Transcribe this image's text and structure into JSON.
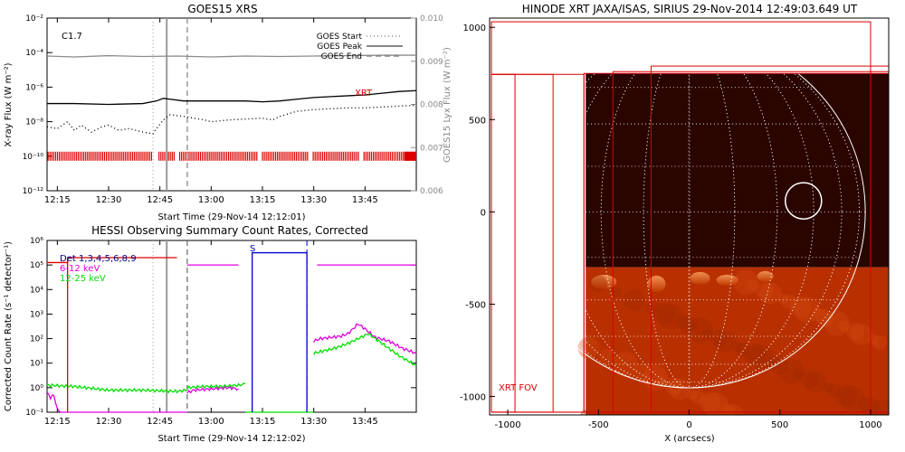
{
  "chart_data": [
    {
      "id": "goes",
      "type": "line",
      "title": "GOES15 XRS",
      "xlabel": "Start Time (29-Nov-14 12:12:01)",
      "ylabel_left": "X-ray Flux (W m⁻²)",
      "ylabel_right": "GOES15 Lyx Flux (W m⁻²)",
      "annotation": "C1.7",
      "x_ticks": [
        "12:15",
        "12:30",
        "12:45",
        "13:00",
        "13:15",
        "13:30",
        "13:45"
      ],
      "x_tick_minutes": [
        15,
        30,
        45,
        60,
        75,
        90,
        105
      ],
      "xlim_minutes": [
        12,
        120
      ],
      "y_scale": "log",
      "ylim_exp": [
        -12,
        -2
      ],
      "y_ticks": [
        "10⁻²",
        "10⁻⁴",
        "10⁻⁶",
        "10⁻⁸",
        "10⁻¹⁰",
        "10⁻¹²"
      ],
      "y_tick_exps": [
        -2,
        -4,
        -6,
        -8,
        -10,
        -12
      ],
      "y2_ticks": [
        "0.010",
        "0.009",
        "0.008",
        "0.007",
        "0.006"
      ],
      "y2_tick_values": [
        0.01,
        0.009,
        0.008,
        0.007,
        0.006
      ],
      "y2lim": [
        0.006,
        0.01
      ],
      "legend": [
        {
          "label": "GOES Start",
          "style": "dotted"
        },
        {
          "label": "GOES Peak",
          "style": "solid"
        },
        {
          "label": "GOES End",
          "style": "dashed"
        }
      ],
      "legend_placement": "top-right",
      "xrt_label": "XRT",
      "event_lines_minutes": {
        "start": 43,
        "peak": 47,
        "end": 53
      },
      "series": [
        {
          "name": "",
          "color": "#000000",
          "style": "solid",
          "axis": "left",
          "x": [
            12,
            20,
            30,
            40,
            44,
            46,
            48,
            52,
            60,
            70,
            75,
            80,
            85,
            90,
            95,
            100,
            105,
            110,
            115,
            120
          ],
          "y_exp": [
            -6.95,
            -6.95,
            -7.0,
            -6.95,
            -6.8,
            -6.65,
            -6.7,
            -6.8,
            -6.8,
            -6.8,
            -6.85,
            -6.8,
            -6.7,
            -6.6,
            -6.55,
            -6.5,
            -6.45,
            -6.35,
            -6.25,
            -6.2
          ]
        },
        {
          "name": "",
          "color": "#000000",
          "style": "dotted",
          "axis": "left",
          "x": [
            12,
            15,
            18,
            20,
            22,
            25,
            28,
            30,
            33,
            36,
            40,
            43,
            44,
            46,
            48,
            50,
            52,
            55,
            58,
            60,
            65,
            70,
            75,
            78,
            80,
            85,
            90,
            95,
            100,
            105,
            110,
            115,
            120
          ],
          "y_exp": [
            -8.3,
            -8.4,
            -8.0,
            -8.5,
            -8.2,
            -8.6,
            -8.3,
            -8.2,
            -8.5,
            -8.4,
            -8.6,
            -8.7,
            -8.4,
            -7.9,
            -7.6,
            -7.65,
            -7.7,
            -7.8,
            -7.9,
            -8.0,
            -7.9,
            -7.85,
            -7.8,
            -7.9,
            -7.7,
            -7.4,
            -7.3,
            -7.25,
            -7.2,
            -7.2,
            -7.15,
            -7.1,
            -7.05
          ]
        },
        {
          "name": "",
          "color": "#8c8c8c",
          "style": "solid",
          "axis": "right",
          "x": [
            12,
            20,
            30,
            40,
            50,
            60,
            70,
            80,
            90,
            100,
            110,
            120
          ],
          "y": [
            0.00912,
            0.0091,
            0.00913,
            0.00911,
            0.00912,
            0.0091,
            0.00912,
            0.00911,
            0.00912,
            0.00913,
            0.00914,
            0.00914
          ]
        }
      ],
      "xrt_obs_color": "#dd0000"
    },
    {
      "id": "hessi",
      "type": "line",
      "title": "HESSI Observing Summary Count Rates, Corrected",
      "xlabel": "Start Time (29-Nov-14 12:12:02)",
      "ylabel": "Corrected Count Rate (s⁻¹ detector⁻¹)",
      "x_ticks": [
        "12:15",
        "12:30",
        "12:45",
        "13:00",
        "13:15",
        "13:30",
        "13:45"
      ],
      "x_tick_minutes": [
        15,
        30,
        45,
        60,
        75,
        90,
        105
      ],
      "xlim_minutes": [
        12,
        120
      ],
      "y_scale": "log",
      "ylim_exp": [
        -1,
        6
      ],
      "y_ticks": [
        "10⁶",
        "10⁵",
        "10⁴",
        "10³",
        "10²",
        "10¹",
        "10⁰",
        "10⁻¹"
      ],
      "y_tick_exps": [
        6,
        5,
        4,
        3,
        2,
        1,
        0,
        -1
      ],
      "legend": [
        {
          "label": "Det 1,3,4,5,6,8,9",
          "color": "#000080"
        },
        {
          "label": "6-12 keV",
          "color": "#e000e0"
        },
        {
          "label": "12-25 keV",
          "color": "#00e000"
        }
      ],
      "s_label": "S",
      "event_lines_minutes": {
        "start": 43,
        "peak": 47,
        "end": 53
      },
      "series": [
        {
          "name": "6-12 keV",
          "color": "#e000e0",
          "segments": [
            {
              "x": [
                12,
                13,
                14,
                15,
                16,
                17
              ],
              "y_exp": [
                -0.2,
                -0.4,
                -0.3,
                -0.9,
                -1,
                -1
              ]
            },
            {
              "x": [
                17,
                53
              ],
              "y_exp": [
                -1,
                -1
              ]
            },
            {
              "x": [
                53,
                55,
                60,
                65,
                68
              ],
              "y_exp": [
                -0.2,
                -0.1,
                -0.05,
                0.0,
                -0.05
              ]
            },
            {
              "x": [
                90,
                92,
                95,
                98,
                100,
                103,
                105,
                108,
                112,
                116,
                120
              ],
              "y_exp": [
                1.9,
                2.0,
                2.05,
                2.1,
                2.2,
                2.6,
                2.4,
                2.05,
                1.9,
                1.6,
                1.4
              ]
            }
          ]
        },
        {
          "name": "12-25 keV",
          "color": "#00e000",
          "segments": [
            {
              "x": [
                12,
                20,
                30,
                40,
                50,
                53
              ],
              "y_exp": [
                0.1,
                0.05,
                -0.1,
                -0.1,
                -0.15,
                -0.1
              ]
            },
            {
              "x": [
                53,
                58,
                63,
                68,
                70
              ],
              "y_exp": [
                0.0,
                0.05,
                0.05,
                0.1,
                0.15
              ]
            },
            {
              "x": [
                70,
                72,
                87,
                90
              ],
              "y_exp": [
                -1,
                -1,
                -1,
                -1
              ]
            },
            {
              "x": [
                90,
                93,
                96,
                100,
                103,
                106,
                110,
                115,
                120
              ],
              "y_exp": [
                1.4,
                1.5,
                1.6,
                1.8,
                2.0,
                2.2,
                1.8,
                1.3,
                0.9
              ]
            }
          ]
        },
        {
          "name": "Det 1,3,4,5,6,8,9",
          "color": "#0000cc",
          "segments": [
            {
              "x": [
                72,
                72,
                88,
                88
              ],
              "y_exp": [
                -1,
                5.5,
                5.5,
                -1
              ]
            }
          ]
        },
        {
          "name": "",
          "color": "#e000e0",
          "segments": [
            {
              "x": [
                53,
                68
              ],
              "y_exp": [
                5.0,
                5.0
              ]
            },
            {
              "x": [
                91,
                120
              ],
              "y_exp": [
                5.0,
                5.0
              ]
            }
          ]
        },
        {
          "name": "",
          "color": "#dd0000",
          "segments": [
            {
              "x": [
                12,
                18,
                18,
                50
              ],
              "y_exp": [
                5.1,
                5.1,
                5.3,
                5.3
              ]
            },
            {
              "x": [
                18,
                18
              ],
              "y_exp": [
                5.3,
                -1
              ]
            }
          ]
        }
      ]
    },
    {
      "id": "xrt",
      "type": "heatmap",
      "title": "HINODE XRT JAXA/ISAS, SIRIUS 29-Nov-2014 12:49:03.649 UT",
      "xlabel": "X (arcsecs)",
      "ylabel": "",
      "x_ticks": [
        "-1000",
        "-500",
        "0",
        "500",
        "1000"
      ],
      "x_tick_values": [
        -1000,
        -500,
        0,
        500,
        1000
      ],
      "y_ticks": [
        "1000",
        "500",
        "0",
        "-500",
        "-1000"
      ],
      "y_tick_values": [
        1000,
        500,
        0,
        -500,
        -1000
      ],
      "xlim": [
        -1100,
        1100
      ],
      "ylim": [
        -1100,
        1050
      ],
      "fov_label": "XRT FOV",
      "fov_color": "#dd0000",
      "limb_radius_arcsec": 971,
      "circle_marker": {
        "x": 630,
        "y": 60,
        "r": 100
      },
      "image_extent": {
        "x0": -570,
        "x1": 1100,
        "y0": -1100,
        "y1": 750,
        "split_y": -300
      },
      "fov_boxes": [
        {
          "x0": -1090,
          "y0": -1085,
          "x1": 1000,
          "y1": 1030
        },
        {
          "x0": -1090,
          "y0": -1085,
          "x1": -960,
          "y1": 745
        },
        {
          "x0": -1090,
          "y0": -1085,
          "x1": -750,
          "y1": 745
        },
        {
          "x0": -1090,
          "y0": -1085,
          "x1": -580,
          "y1": 745
        },
        {
          "x0": -420,
          "y0": -1085,
          "x1": 1100,
          "y1": 760
        },
        {
          "x0": -210,
          "y0": -1085,
          "x1": 1100,
          "y1": 790
        },
        {
          "x0": -580,
          "y0": -1085,
          "x1": 1100,
          "y1": 750
        }
      ],
      "image_colors": {
        "dark": "#2a0500",
        "bright": "#b83000",
        "active": "#f07830"
      }
    }
  ]
}
